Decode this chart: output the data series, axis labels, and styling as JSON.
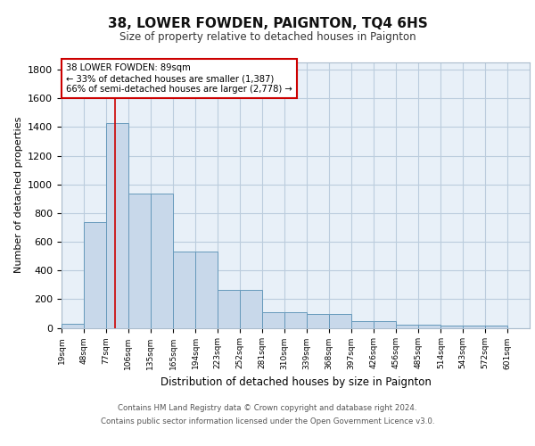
{
  "title": "38, LOWER FOWDEN, PAIGNTON, TQ4 6HS",
  "subtitle": "Size of property relative to detached houses in Paignton",
  "xlabel": "Distribution of detached houses by size in Paignton",
  "ylabel": "Number of detached properties",
  "bin_edges": [
    19,
    48,
    77,
    106,
    135,
    165,
    194,
    223,
    252,
    281,
    310,
    339,
    368,
    397,
    426,
    456,
    485,
    514,
    543,
    572,
    601
  ],
  "bar_heights": [
    25,
    740,
    1430,
    935,
    935,
    530,
    530,
    265,
    265,
    110,
    110,
    95,
    95,
    45,
    45,
    20,
    20,
    15,
    15,
    15
  ],
  "bar_color": "#c8d8ea",
  "bar_edge_color": "#6699bb",
  "grid_color": "#c8d8ea",
  "background_color": "#e8f0f8",
  "vline_x": 89,
  "vline_color": "#cc0000",
  "annotation_text": "38 LOWER FOWDEN: 89sqm\n← 33% of detached houses are smaller (1,387)\n66% of semi-detached houses are larger (2,778) →",
  "annotation_box_color": "#ffffff",
  "annotation_box_edge": "#cc0000",
  "ylim": [
    0,
    1850
  ],
  "yticks": [
    0,
    200,
    400,
    600,
    800,
    1000,
    1200,
    1400,
    1600,
    1800
  ],
  "footer_line1": "Contains HM Land Registry data © Crown copyright and database right 2024.",
  "footer_line2": "Contains public sector information licensed under the Open Government Licence v3.0."
}
